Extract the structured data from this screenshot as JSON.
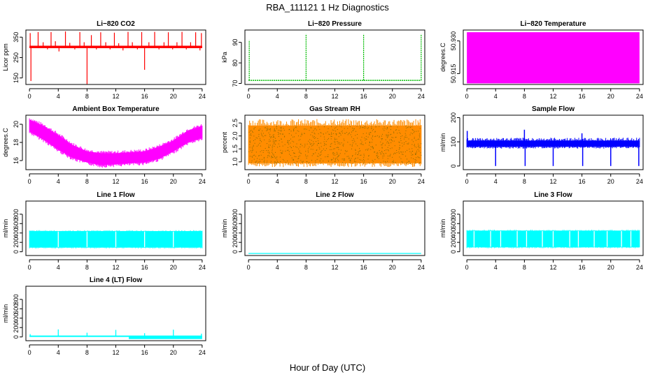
{
  "figure": {
    "title": "RBA_111121  1 Hz Diagnostics",
    "xlabel": "Hour of Day (UTC)"
  },
  "chart_data": [
    {
      "id": "co2",
      "type": "line",
      "title": "Li−820 CO2",
      "ylabel": "Licor ppm",
      "color": "#ff0000",
      "xlim": [
        -0.5,
        24.5
      ],
      "ylim": [
        118,
        385
      ],
      "xticks": [
        "0",
        "4",
        "8",
        "12",
        "16",
        "20",
        "24"
      ],
      "xtick_values": [
        0,
        4,
        8,
        12,
        16,
        20,
        24
      ],
      "yticks": [
        "150",
        "250",
        "350"
      ],
      "ytick_values": [
        150,
        250,
        350
      ],
      "baseline": 302,
      "band_low": 296,
      "band_high": 308,
      "spikes": [
        {
          "x": 0.1,
          "y": 370
        },
        {
          "x": 0.2,
          "y": 135
        },
        {
          "x": 1.2,
          "y": 375
        },
        {
          "x": 1.9,
          "y": 325
        },
        {
          "x": 2.5,
          "y": 290
        },
        {
          "x": 3.0,
          "y": 375
        },
        {
          "x": 3.6,
          "y": 330
        },
        {
          "x": 4.1,
          "y": 280
        },
        {
          "x": 5.0,
          "y": 378
        },
        {
          "x": 5.6,
          "y": 322
        },
        {
          "x": 6.3,
          "y": 290
        },
        {
          "x": 7.0,
          "y": 375
        },
        {
          "x": 7.6,
          "y": 325
        },
        {
          "x": 8.0,
          "y": 120
        },
        {
          "x": 8.6,
          "y": 360
        },
        {
          "x": 9.3,
          "y": 290
        },
        {
          "x": 9.9,
          "y": 374
        },
        {
          "x": 10.6,
          "y": 325
        },
        {
          "x": 11.2,
          "y": 290
        },
        {
          "x": 11.8,
          "y": 372
        },
        {
          "x": 12.4,
          "y": 320
        },
        {
          "x": 13.0,
          "y": 285
        },
        {
          "x": 13.7,
          "y": 376
        },
        {
          "x": 14.3,
          "y": 325
        },
        {
          "x": 15.0,
          "y": 290
        },
        {
          "x": 15.6,
          "y": 375
        },
        {
          "x": 16.0,
          "y": 190
        },
        {
          "x": 16.6,
          "y": 325
        },
        {
          "x": 17.4,
          "y": 376
        },
        {
          "x": 18.0,
          "y": 290
        },
        {
          "x": 18.7,
          "y": 325
        },
        {
          "x": 19.3,
          "y": 374
        },
        {
          "x": 19.9,
          "y": 290
        },
        {
          "x": 20.5,
          "y": 325
        },
        {
          "x": 21.2,
          "y": 376
        },
        {
          "x": 21.8,
          "y": 290
        },
        {
          "x": 22.4,
          "y": 325
        },
        {
          "x": 23.1,
          "y": 374
        },
        {
          "x": 23.7,
          "y": 285
        },
        {
          "x": 23.9,
          "y": 370
        }
      ]
    },
    {
      "id": "pressure",
      "type": "line",
      "title": "Li−820 Pressure",
      "ylabel": "kPa",
      "color": "#00bb00",
      "xlim": [
        -0.5,
        24.5
      ],
      "ylim": [
        69.5,
        96
      ],
      "xticks": [
        "0",
        "4",
        "8",
        "12",
        "16",
        "20",
        "24"
      ],
      "xtick_values": [
        0,
        4,
        8,
        12,
        16,
        20,
        24
      ],
      "yticks": [
        "70",
        "80",
        "90"
      ],
      "ytick_values": [
        70,
        80,
        90
      ],
      "baseline": 71.5,
      "spikes": [
        {
          "x": 0.1,
          "y": 91
        },
        {
          "x": 8.0,
          "y": 94
        },
        {
          "x": 16.0,
          "y": 94
        },
        {
          "x": 24.0,
          "y": 94
        }
      ]
    },
    {
      "id": "licor-temp",
      "type": "area",
      "title": "Li−820 Temperature",
      "ylabel": "degrees.C",
      "color": "#ff00ff",
      "xlim": [
        -0.5,
        24.5
      ],
      "ylim": [
        50.91,
        50.935
      ],
      "xticks": [
        "0",
        "4",
        "8",
        "12",
        "16",
        "20",
        "24"
      ],
      "xtick_values": [
        0,
        4,
        8,
        12,
        16,
        20,
        24
      ],
      "yticks": [
        "50.915",
        "50.930"
      ],
      "ytick_values": [
        50.915,
        50.93
      ],
      "band_low": 50.9105,
      "band_high": 50.934,
      "x_start": 0,
      "x_end": 24
    },
    {
      "id": "box-temp",
      "type": "area",
      "title": "Ambient Box Temperature",
      "ylabel": "degrees.C",
      "color": "#ff00ff",
      "xlim": [
        -0.5,
        24.5
      ],
      "ylim": [
        15,
        21
      ],
      "xticks": [
        "0",
        "4",
        "8",
        "12",
        "16",
        "20",
        "24"
      ],
      "xtick_values": [
        0,
        4,
        8,
        12,
        16,
        20,
        24
      ],
      "yticks": [
        "16",
        "18",
        "20"
      ],
      "ytick_values": [
        16,
        18,
        20
      ],
      "hours": [
        0,
        2,
        4,
        6,
        8,
        10,
        12,
        14,
        16,
        18,
        20,
        22,
        24
      ],
      "lower": [
        19.2,
        18.3,
        17.2,
        16.3,
        15.8,
        15.5,
        15.6,
        15.7,
        15.8,
        16.2,
        17.0,
        18.0,
        18.5
      ],
      "upper": [
        20.5,
        19.8,
        18.8,
        17.7,
        17.0,
        16.8,
        16.8,
        16.9,
        17.0,
        17.5,
        18.2,
        19.3,
        19.8
      ]
    },
    {
      "id": "rh",
      "type": "area",
      "title": "Gas Stream RH",
      "ylabel": "percent",
      "color": "#ff8c00",
      "xlim": [
        -0.5,
        24.5
      ],
      "ylim": [
        0.7,
        2.8
      ],
      "xticks": [
        "0",
        "4",
        "8",
        "12",
        "16",
        "20",
        "24"
      ],
      "xtick_values": [
        0,
        4,
        8,
        12,
        16,
        20,
        24
      ],
      "yticks": [
        "1.0",
        "1.5",
        "2.0",
        "2.5"
      ],
      "ytick_values": [
        1.0,
        1.5,
        2.0,
        2.5
      ],
      "band_low": 0.95,
      "band_high": 2.4,
      "x_start": 0,
      "x_end": 24
    },
    {
      "id": "sample-flow",
      "type": "line",
      "title": "Sample Flow",
      "ylabel": "ml/min",
      "color": "#0000ff",
      "xlim": [
        -0.5,
        24.5
      ],
      "ylim": [
        -15,
        210
      ],
      "xticks": [
        "0",
        "4",
        "8",
        "12",
        "16",
        "20",
        "24"
      ],
      "xtick_values": [
        0,
        4,
        8,
        12,
        16,
        20,
        24
      ],
      "yticks": [
        "0",
        "100",
        "200"
      ],
      "ytick_values": [
        0,
        100,
        200
      ],
      "band_low": 80,
      "band_high": 105,
      "spikes": [
        {
          "x": 0.05,
          "y": 145
        },
        {
          "x": 4.0,
          "y": 0
        },
        {
          "x": 8.0,
          "y": 150
        },
        {
          "x": 8.1,
          "y": 0
        },
        {
          "x": 12.0,
          "y": 0
        },
        {
          "x": 16.0,
          "y": 135
        },
        {
          "x": 16.1,
          "y": 0
        },
        {
          "x": 20.0,
          "y": 0
        },
        {
          "x": 23.9,
          "y": 0
        }
      ]
    },
    {
      "id": "line1",
      "type": "area",
      "title": "Line 1 Flow",
      "ylabel": "ml/min",
      "color": "#00ffff",
      "xlim": [
        -0.5,
        24.5
      ],
      "ylim": [
        -80,
        1080
      ],
      "xticks": [
        "0",
        "4",
        "8",
        "12",
        "16",
        "20",
        "24"
      ],
      "xtick_values": [
        0,
        4,
        8,
        12,
        16,
        20,
        24
      ],
      "yticks": [
        "0",
        "200",
        "400",
        "600",
        "800"
      ],
      "ytick_values": [
        0,
        200,
        400,
        600,
        800
      ],
      "band_low": 90,
      "band_high": 440,
      "x_start": 0,
      "x_end": 24,
      "gaps": [
        4,
        8,
        12,
        16,
        20
      ]
    },
    {
      "id": "line2",
      "type": "line",
      "title": "Line 2 Flow",
      "ylabel": "ml/min",
      "color": "#00ffff",
      "xlim": [
        -0.5,
        24.5
      ],
      "ylim": [
        -80,
        1080
      ],
      "xticks": [
        "0",
        "4",
        "8",
        "12",
        "16",
        "20",
        "24"
      ],
      "xtick_values": [
        0,
        4,
        8,
        12,
        16,
        20,
        24
      ],
      "yticks": [
        "0",
        "200",
        "400",
        "600",
        "800"
      ],
      "ytick_values": [
        0,
        200,
        400,
        600,
        800
      ],
      "baseline": -35,
      "x_start": 0,
      "x_end": 24
    },
    {
      "id": "line3",
      "type": "area",
      "title": "Line 3 Flow",
      "ylabel": "ml/min",
      "color": "#00ffff",
      "xlim": [
        -0.5,
        24.5
      ],
      "ylim": [
        -80,
        1080
      ],
      "xticks": [
        "0",
        "4",
        "8",
        "12",
        "16",
        "20",
        "24"
      ],
      "xtick_values": [
        0,
        4,
        8,
        12,
        16,
        20,
        24
      ],
      "yticks": [
        "0",
        "200",
        "400",
        "600",
        "800"
      ],
      "ytick_values": [
        0,
        200,
        400,
        600,
        800
      ],
      "band_low": 95,
      "band_high": 450,
      "x_start": 0,
      "x_end": 24,
      "gaps": [
        1.0,
        3.3,
        4.7,
        7.0,
        8.3,
        10.5,
        12.0,
        14.3,
        15.5,
        17.7,
        19.5,
        21.5,
        22.8
      ]
    },
    {
      "id": "line4",
      "type": "line",
      "title": "Line 4 (LT) Flow",
      "ylabel": "ml/min",
      "color": "#00ffff",
      "xlim": [
        -0.5,
        24.5
      ],
      "ylim": [
        -80,
        1080
      ],
      "xticks": [
        "0",
        "4",
        "8",
        "12",
        "16",
        "20",
        "24"
      ],
      "xtick_values": [
        0,
        4,
        8,
        12,
        16,
        20,
        24
      ],
      "yticks": [
        "0",
        "200",
        "400",
        "600",
        "800"
      ],
      "ytick_values": [
        0,
        200,
        400,
        600,
        800
      ],
      "baseline": 15,
      "dip_start": 13.8,
      "dip_end": 24,
      "dip_low": -45,
      "spikes": [
        {
          "x": 0.1,
          "y": 60
        },
        {
          "x": 4.0,
          "y": 160
        },
        {
          "x": 8.0,
          "y": 90
        },
        {
          "x": 12.0,
          "y": 150
        },
        {
          "x": 16.0,
          "y": 80
        },
        {
          "x": 20.0,
          "y": 155
        },
        {
          "x": 23.9,
          "y": 70
        }
      ]
    }
  ]
}
